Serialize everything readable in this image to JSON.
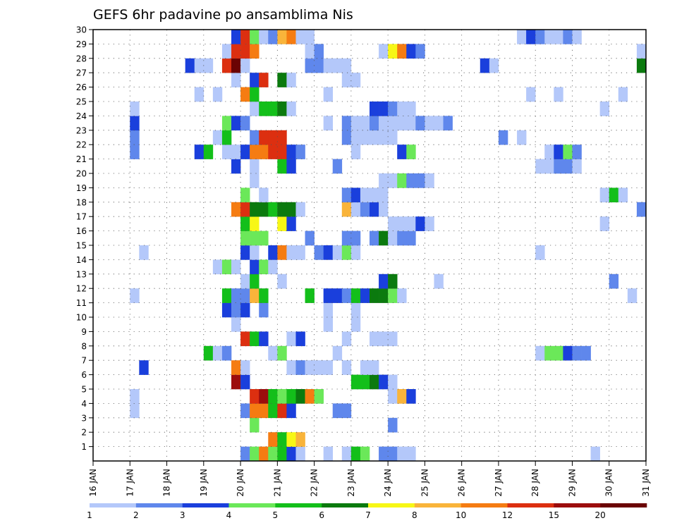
{
  "chart_data": {
    "type": "heatmap",
    "title": "GEFS 6hr padavine po ansamblima Nis",
    "x_tick_labels": [
      "16 JAN",
      "17 JAN",
      "18 JAN",
      "19 JAN",
      "20 JAN",
      "21 JAN",
      "22 JAN",
      "23 JAN",
      "24 JAN",
      "25 JAN",
      "26 JAN",
      "27 JAN",
      "28 JAN",
      "29 JAN",
      "30 JAN",
      "31 JAN"
    ],
    "y_tick_labels": [
      "1",
      "2",
      "3",
      "4",
      "5",
      "6",
      "7",
      "8",
      "9",
      "10",
      "11",
      "12",
      "13",
      "14",
      "15",
      "16",
      "17",
      "18",
      "19",
      "20",
      "21",
      "22",
      "23",
      "24",
      "25",
      "26",
      "27",
      "28",
      "29",
      "30"
    ],
    "xlim_days": [
      16,
      31
    ],
    "ylim_members": [
      0,
      30
    ],
    "grid": "dotted",
    "legend": {
      "placement": "bottom",
      "labels": [
        "1",
        "2",
        "3",
        "4",
        "5",
        "6",
        "7",
        "8",
        "10",
        "12",
        "15",
        "20"
      ],
      "colors": [
        "#b4c8fa",
        "#5f87ec",
        "#1a3fdc",
        "#6be859",
        "#13bf1a",
        "#0b7a0e",
        "#f7f716",
        "#f9b43a",
        "#f57c12",
        "#dc2f10",
        "#9c0d0d",
        "#6b0303"
      ]
    },
    "cells": [
      [
        1,
        20.0,
        2
      ],
      [
        1,
        20.25,
        4
      ],
      [
        1,
        20.5,
        9
      ],
      [
        1,
        20.75,
        4
      ],
      [
        1,
        21.0,
        5
      ],
      [
        1,
        21.25,
        3
      ],
      [
        1,
        21.5,
        1
      ],
      [
        1,
        22.25,
        1
      ],
      [
        1,
        22.75,
        1
      ],
      [
        1,
        23.0,
        5
      ],
      [
        1,
        23.25,
        4
      ],
      [
        1,
        23.75,
        2
      ],
      [
        1,
        24.0,
        2
      ],
      [
        1,
        24.25,
        1
      ],
      [
        1,
        24.5,
        1
      ],
      [
        1,
        29.5,
        1
      ],
      [
        2,
        20.75,
        9
      ],
      [
        2,
        21.0,
        5
      ],
      [
        2,
        21.25,
        7
      ],
      [
        2,
        21.5,
        8
      ],
      [
        3,
        20.25,
        4
      ],
      [
        3,
        24.0,
        2
      ],
      [
        4,
        17.0,
        1
      ],
      [
        4,
        20.0,
        2
      ],
      [
        4,
        20.25,
        9
      ],
      [
        4,
        20.5,
        9
      ],
      [
        4,
        20.75,
        5
      ],
      [
        4,
        21.0,
        10
      ],
      [
        4,
        21.25,
        3
      ],
      [
        4,
        22.5,
        2
      ],
      [
        4,
        22.75,
        2
      ],
      [
        5,
        17.0,
        1
      ],
      [
        5,
        20.25,
        10
      ],
      [
        5,
        20.5,
        11
      ],
      [
        5,
        20.75,
        5
      ],
      [
        5,
        21.0,
        4
      ],
      [
        5,
        21.25,
        5
      ],
      [
        5,
        21.5,
        6
      ],
      [
        5,
        21.75,
        9
      ],
      [
        5,
        22.0,
        4
      ],
      [
        5,
        24.0,
        1
      ],
      [
        5,
        24.25,
        8
      ],
      [
        5,
        24.5,
        3
      ],
      [
        6,
        19.75,
        11
      ],
      [
        6,
        20.0,
        3
      ],
      [
        6,
        23.0,
        5
      ],
      [
        6,
        23.25,
        5
      ],
      [
        6,
        23.5,
        6
      ],
      [
        6,
        23.75,
        3
      ],
      [
        6,
        24.0,
        1
      ],
      [
        7,
        17.25,
        3
      ],
      [
        7,
        19.75,
        9
      ],
      [
        7,
        20.0,
        1
      ],
      [
        7,
        21.25,
        1
      ],
      [
        7,
        21.5,
        2
      ],
      [
        7,
        21.75,
        1
      ],
      [
        7,
        22.0,
        1
      ],
      [
        7,
        22.25,
        1
      ],
      [
        7,
        22.75,
        1
      ],
      [
        7,
        23.25,
        1
      ],
      [
        7,
        23.5,
        1
      ],
      [
        8,
        19.0,
        5
      ],
      [
        8,
        19.25,
        1
      ],
      [
        8,
        19.5,
        2
      ],
      [
        8,
        20.75,
        1
      ],
      [
        8,
        21.0,
        4
      ],
      [
        8,
        22.5,
        1
      ],
      [
        8,
        28.0,
        1
      ],
      [
        8,
        28.25,
        4
      ],
      [
        8,
        28.5,
        4
      ],
      [
        8,
        28.75,
        3
      ],
      [
        8,
        29.0,
        2
      ],
      [
        8,
        29.25,
        2
      ],
      [
        9,
        20.0,
        10
      ],
      [
        9,
        20.25,
        5
      ],
      [
        9,
        20.5,
        3
      ],
      [
        9,
        21.25,
        1
      ],
      [
        9,
        21.5,
        3
      ],
      [
        9,
        22.75,
        1
      ],
      [
        9,
        23.5,
        1
      ],
      [
        9,
        23.75,
        1
      ],
      [
        9,
        24.0,
        1
      ],
      [
        10,
        19.75,
        1
      ],
      [
        10,
        22.25,
        1
      ],
      [
        10,
        23.0,
        1
      ],
      [
        11,
        19.5,
        3
      ],
      [
        11,
        19.75,
        2
      ],
      [
        11,
        20.0,
        3
      ],
      [
        11,
        20.5,
        2
      ],
      [
        11,
        22.25,
        1
      ],
      [
        11,
        23.0,
        1
      ],
      [
        12,
        17.0,
        1
      ],
      [
        12,
        19.5,
        5
      ],
      [
        12,
        19.75,
        2
      ],
      [
        12,
        20.0,
        2
      ],
      [
        12,
        20.25,
        8
      ],
      [
        12,
        20.5,
        5
      ],
      [
        12,
        21.75,
        5
      ],
      [
        12,
        22.25,
        3
      ],
      [
        12,
        22.5,
        3
      ],
      [
        12,
        22.75,
        2
      ],
      [
        12,
        23.0,
        5
      ],
      [
        12,
        23.25,
        3
      ],
      [
        12,
        23.5,
        6
      ],
      [
        12,
        23.75,
        6
      ],
      [
        12,
        24.0,
        4
      ],
      [
        12,
        24.25,
        1
      ],
      [
        12,
        30.5,
        1
      ],
      [
        13,
        20.0,
        1
      ],
      [
        13,
        20.25,
        5
      ],
      [
        13,
        21.0,
        1
      ],
      [
        13,
        23.75,
        3
      ],
      [
        13,
        24.0,
        6
      ],
      [
        13,
        25.25,
        1
      ],
      [
        13,
        30.0,
        2
      ],
      [
        14,
        19.25,
        1
      ],
      [
        14,
        19.5,
        4
      ],
      [
        14,
        19.75,
        1
      ],
      [
        14,
        20.25,
        3
      ],
      [
        14,
        20.5,
        4
      ],
      [
        14,
        20.75,
        1
      ],
      [
        15,
        17.25,
        1
      ],
      [
        15,
        20.0,
        3
      ],
      [
        15,
        20.25,
        1
      ],
      [
        15,
        20.75,
        3
      ],
      [
        15,
        21.0,
        9
      ],
      [
        15,
        21.25,
        1
      ],
      [
        15,
        21.5,
        1
      ],
      [
        15,
        22.0,
        2
      ],
      [
        15,
        22.25,
        3
      ],
      [
        15,
        22.5,
        1
      ],
      [
        15,
        22.75,
        4
      ],
      [
        15,
        23.0,
        1
      ],
      [
        15,
        28.0,
        1
      ],
      [
        16,
        20.0,
        4
      ],
      [
        16,
        20.25,
        4
      ],
      [
        16,
        20.5,
        4
      ],
      [
        16,
        21.75,
        2
      ],
      [
        16,
        22.75,
        2
      ],
      [
        16,
        23.0,
        2
      ],
      [
        16,
        23.5,
        2
      ],
      [
        16,
        23.75,
        6
      ],
      [
        16,
        24.0,
        1
      ],
      [
        16,
        24.25,
        2
      ],
      [
        16,
        24.5,
        2
      ],
      [
        17,
        20.0,
        5
      ],
      [
        17,
        20.25,
        7
      ],
      [
        17,
        21.0,
        7
      ],
      [
        17,
        21.25,
        3
      ],
      [
        17,
        24.0,
        1
      ],
      [
        17,
        24.25,
        1
      ],
      [
        17,
        24.5,
        1
      ],
      [
        17,
        24.75,
        3
      ],
      [
        17,
        25.0,
        1
      ],
      [
        17,
        29.75,
        1
      ],
      [
        18,
        19.75,
        9
      ],
      [
        18,
        20.0,
        10
      ],
      [
        18,
        20.25,
        6
      ],
      [
        18,
        20.5,
        6
      ],
      [
        18,
        20.75,
        5
      ],
      [
        18,
        21.0,
        6
      ],
      [
        18,
        21.25,
        6
      ],
      [
        18,
        21.5,
        1
      ],
      [
        18,
        22.75,
        8
      ],
      [
        18,
        23.0,
        1
      ],
      [
        18,
        23.25,
        2
      ],
      [
        18,
        23.5,
        3
      ],
      [
        18,
        23.75,
        1
      ],
      [
        18,
        30.75,
        2
      ],
      [
        19,
        20.0,
        4
      ],
      [
        19,
        20.5,
        1
      ],
      [
        19,
        22.75,
        2
      ],
      [
        19,
        23.0,
        3
      ],
      [
        19,
        23.25,
        1
      ],
      [
        19,
        23.5,
        1
      ],
      [
        19,
        23.75,
        1
      ],
      [
        19,
        29.75,
        1
      ],
      [
        19,
        30.0,
        5
      ],
      [
        19,
        30.25,
        1
      ],
      [
        20,
        20.25,
        1
      ],
      [
        20,
        23.75,
        1
      ],
      [
        20,
        24.0,
        1
      ],
      [
        20,
        24.25,
        4
      ],
      [
        20,
        24.5,
        2
      ],
      [
        20,
        24.75,
        2
      ],
      [
        20,
        25.0,
        1
      ],
      [
        21,
        19.75,
        3
      ],
      [
        21,
        20.25,
        1
      ],
      [
        21,
        21.0,
        5
      ],
      [
        21,
        21.25,
        3
      ],
      [
        21,
        22.5,
        2
      ],
      [
        21,
        28.0,
        1
      ],
      [
        21,
        28.25,
        1
      ],
      [
        21,
        28.5,
        2
      ],
      [
        21,
        28.75,
        2
      ],
      [
        21,
        29.0,
        1
      ],
      [
        22,
        17.0,
        2
      ],
      [
        22,
        18.75,
        3
      ],
      [
        22,
        19.0,
        5
      ],
      [
        22,
        19.5,
        1
      ],
      [
        22,
        19.75,
        1
      ],
      [
        22,
        20.0,
        3
      ],
      [
        22,
        20.25,
        9
      ],
      [
        22,
        20.5,
        9
      ],
      [
        22,
        20.75,
        10
      ],
      [
        22,
        21.0,
        10
      ],
      [
        22,
        21.25,
        3
      ],
      [
        22,
        21.5,
        2
      ],
      [
        22,
        23.0,
        1
      ],
      [
        22,
        24.25,
        3
      ],
      [
        22,
        24.5,
        4
      ],
      [
        22,
        28.25,
        1
      ],
      [
        22,
        28.5,
        3
      ],
      [
        22,
        28.75,
        4
      ],
      [
        22,
        29.0,
        2
      ],
      [
        23,
        17.0,
        2
      ],
      [
        23,
        19.25,
        1
      ],
      [
        23,
        19.5,
        5
      ],
      [
        23,
        20.25,
        2
      ],
      [
        23,
        20.5,
        10
      ],
      [
        23,
        20.75,
        10
      ],
      [
        23,
        21.0,
        10
      ],
      [
        23,
        22.75,
        2
      ],
      [
        23,
        23.0,
        1
      ],
      [
        23,
        23.25,
        1
      ],
      [
        23,
        23.5,
        1
      ],
      [
        23,
        23.75,
        1
      ],
      [
        23,
        24.0,
        1
      ],
      [
        23,
        27.0,
        2
      ],
      [
        23,
        27.5,
        1
      ],
      [
        24,
        17.0,
        3
      ],
      [
        24,
        19.5,
        4
      ],
      [
        24,
        19.75,
        3
      ],
      [
        24,
        20.0,
        2
      ],
      [
        24,
        22.25,
        1
      ],
      [
        24,
        22.75,
        2
      ],
      [
        24,
        23.0,
        1
      ],
      [
        24,
        23.25,
        1
      ],
      [
        24,
        23.5,
        2
      ],
      [
        24,
        23.75,
        1
      ],
      [
        24,
        24.0,
        1
      ],
      [
        24,
        24.25,
        1
      ],
      [
        24,
        24.5,
        1
      ],
      [
        24,
        24.75,
        2
      ],
      [
        24,
        25.0,
        1
      ],
      [
        24,
        25.25,
        1
      ],
      [
        24,
        25.5,
        2
      ],
      [
        25,
        17.0,
        1
      ],
      [
        25,
        20.25,
        1
      ],
      [
        25,
        20.5,
        5
      ],
      [
        25,
        20.75,
        5
      ],
      [
        25,
        21.0,
        6
      ],
      [
        25,
        21.25,
        1
      ],
      [
        25,
        23.5,
        3
      ],
      [
        25,
        23.75,
        3
      ],
      [
        25,
        24.0,
        2
      ],
      [
        25,
        24.25,
        1
      ],
      [
        25,
        24.5,
        1
      ],
      [
        25,
        29.75,
        1
      ],
      [
        26,
        18.75,
        1
      ],
      [
        26,
        19.25,
        1
      ],
      [
        26,
        20.0,
        9
      ],
      [
        26,
        20.25,
        5
      ],
      [
        26,
        22.25,
        1
      ],
      [
        26,
        27.75,
        1
      ],
      [
        26,
        28.5,
        1
      ],
      [
        26,
        30.25,
        1
      ],
      [
        27,
        19.75,
        1
      ],
      [
        27,
        20.25,
        3
      ],
      [
        27,
        20.5,
        10
      ],
      [
        27,
        21.0,
        6
      ],
      [
        27,
        21.25,
        1
      ],
      [
        27,
        22.75,
        1
      ],
      [
        27,
        23.0,
        1
      ],
      [
        28,
        18.5,
        3
      ],
      [
        28,
        18.75,
        1
      ],
      [
        28,
        19.0,
        1
      ],
      [
        28,
        19.5,
        10
      ],
      [
        28,
        19.75,
        12
      ],
      [
        28,
        20.0,
        1
      ],
      [
        28,
        21.75,
        2
      ],
      [
        28,
        22.0,
        2
      ],
      [
        28,
        22.25,
        1
      ],
      [
        28,
        22.5,
        1
      ],
      [
        28,
        22.75,
        1
      ],
      [
        28,
        26.5,
        3
      ],
      [
        28,
        26.75,
        1
      ],
      [
        28,
        30.75,
        6
      ],
      [
        29,
        19.5,
        1
      ],
      [
        29,
        19.75,
        10
      ],
      [
        29,
        20.0,
        10
      ],
      [
        29,
        20.25,
        9
      ],
      [
        29,
        21.75,
        1
      ],
      [
        29,
        22.0,
        2
      ],
      [
        29,
        23.75,
        1
      ],
      [
        29,
        24.0,
        7
      ],
      [
        29,
        24.25,
        9
      ],
      [
        29,
        24.5,
        3
      ],
      [
        29,
        24.75,
        2
      ],
      [
        29,
        30.75,
        1
      ],
      [
        30,
        19.75,
        3
      ],
      [
        30,
        20.0,
        10
      ],
      [
        30,
        20.25,
        4
      ],
      [
        30,
        20.5,
        1
      ],
      [
        30,
        20.75,
        2
      ],
      [
        30,
        21.0,
        8
      ],
      [
        30,
        21.25,
        9
      ],
      [
        30,
        21.5,
        1
      ],
      [
        30,
        21.75,
        1
      ],
      [
        30,
        27.5,
        1
      ],
      [
        30,
        27.75,
        3
      ],
      [
        30,
        28.0,
        2
      ],
      [
        30,
        28.25,
        1
      ],
      [
        30,
        28.5,
        1
      ],
      [
        30,
        28.75,
        2
      ],
      [
        30,
        29.0,
        1
      ]
    ]
  }
}
